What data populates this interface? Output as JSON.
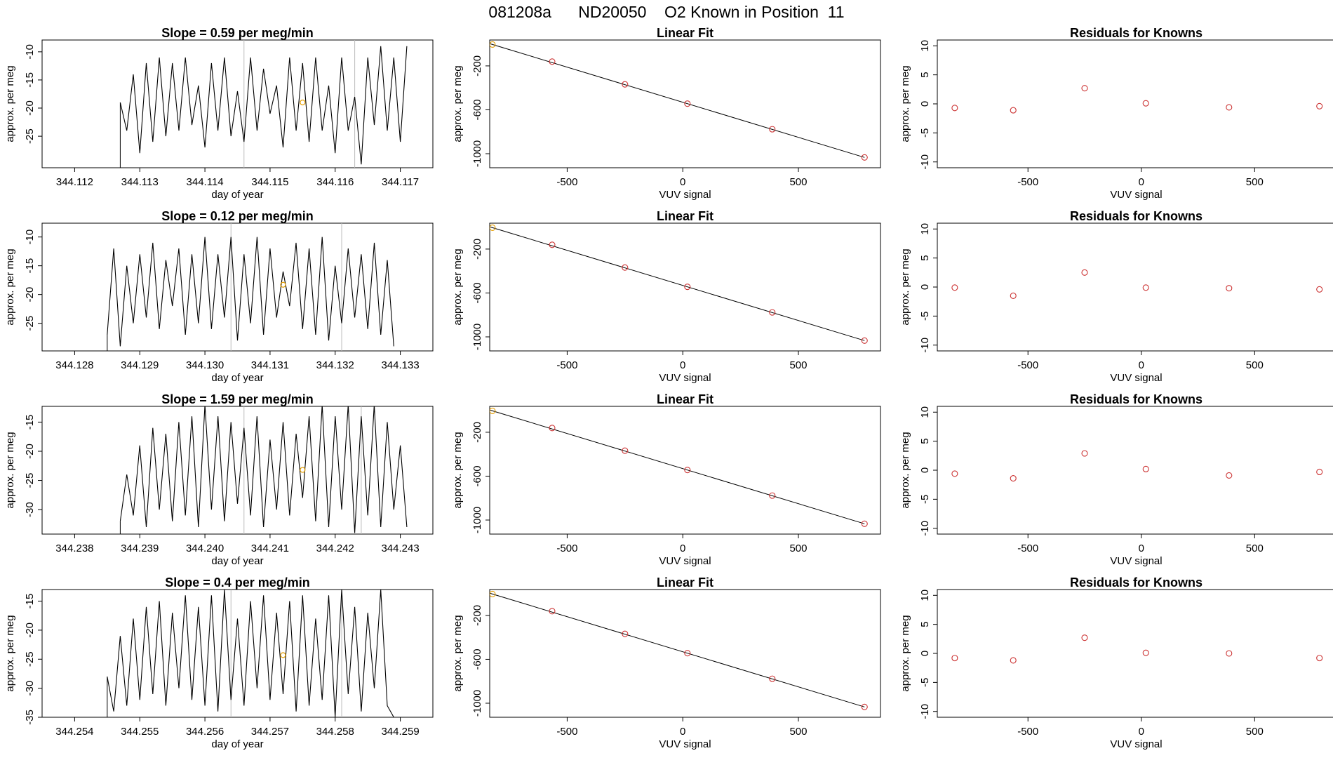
{
  "title": "081208a      ND20050    O2 Known in Position  11",
  "chart_data": [
    {
      "panel": "row1-timeseries",
      "type": "line",
      "title": "Slope =  0.59  per meg/min",
      "xlabel": "day of year",
      "ylabel": "approx. per meg",
      "xlim": [
        344.1115,
        344.1175
      ],
      "ylim": [
        -30.6,
        -7.9
      ],
      "xticks": [
        "344.112",
        "344.113",
        "344.114",
        "344.115",
        "344.116",
        "344.117"
      ],
      "yticks": [
        "-10",
        "-15",
        "-20",
        "-25"
      ],
      "gaps": [
        344.1146,
        344.1163
      ],
      "x": [
        344.1127,
        344.1128,
        344.1129,
        344.113,
        344.1131,
        344.1132,
        344.1133,
        344.1134,
        344.1135,
        344.1136,
        344.1137,
        344.1138,
        344.1139,
        344.114,
        344.1141,
        344.1142,
        344.1143,
        344.1144,
        344.1145,
        344.1146,
        344.1147,
        344.1148,
        344.1149,
        344.115,
        344.1151,
        344.1152,
        344.1153,
        344.1154,
        344.1155,
        344.1156,
        344.1157,
        344.1158,
        344.1159,
        344.116,
        344.1161,
        344.1162,
        344.1163,
        344.1164,
        344.1165,
        344.1166,
        344.1167,
        344.1168,
        344.1169,
        344.117,
        344.1171
      ],
      "y": [
        -19,
        -24,
        -14,
        -28,
        -12,
        -26,
        -11,
        -25,
        -12,
        -24,
        -11,
        -23,
        -16,
        -27,
        -12,
        -24,
        -11,
        -25,
        -17,
        -26,
        -11,
        -24,
        -13,
        -21,
        -16,
        -27,
        -11,
        -24,
        -12,
        -26,
        -11,
        -24,
        -16,
        -28,
        -11,
        -24,
        -18,
        -30,
        -11,
        -23,
        -9,
        -24,
        -11,
        -26,
        -9
      ],
      "highlight": {
        "x": 344.1155,
        "y": -19
      }
    },
    {
      "panel": "row1-linear-fit",
      "type": "scatter",
      "title": "Linear Fit",
      "xlabel": "VUV signal",
      "ylabel": "approx. per meg",
      "xlim": [
        -835,
        855
      ],
      "ylim": [
        -1128,
        36
      ],
      "xticks": [
        "-500",
        "0",
        "500"
      ],
      "yticks": [
        "-200",
        "-600",
        "-1000"
      ],
      "x": [
        -823,
        -565,
        -250,
        20,
        387,
        786
      ],
      "y": [
        -5,
        -161,
        -368,
        -544,
        -777,
        -1034
      ],
      "fit": {
        "from": [
          -823,
          -5
        ],
        "to": [
          786,
          -1034
        ]
      },
      "first_point_color": "#e69f00"
    },
    {
      "panel": "row1-residuals",
      "type": "scatter",
      "title": "Residuals for Knowns",
      "ylabel": "approx. per meg",
      "xlabel": "VUV signal",
      "xlim": [
        -900,
        855
      ],
      "ylim": [
        -11,
        11
      ],
      "xticks": [
        "-500",
        "0",
        "500"
      ],
      "yticks": [
        "10",
        "5",
        "0",
        "-5",
        "-10"
      ],
      "x": [
        -823,
        -565,
        -250,
        20,
        387,
        786
      ],
      "y": [
        -0.7,
        -1.1,
        2.7,
        0.1,
        -0.6,
        -0.4
      ]
    },
    {
      "panel": "row2-timeseries",
      "type": "line",
      "title": "Slope =  0.12  per meg/min",
      "xlabel": "day of year",
      "ylabel": "approx. per meg",
      "xlim": [
        344.1275,
        344.1335
      ],
      "ylim": [
        -29.8,
        -7.6
      ],
      "xticks": [
        "344.128",
        "344.129",
        "344.130",
        "344.131",
        "344.132",
        "344.133"
      ],
      "yticks": [
        "-10",
        "-15",
        "-20",
        "-25"
      ],
      "gaps": [
        344.1304,
        344.1321
      ],
      "x": [
        344.1285,
        344.1286,
        344.1287,
        344.1288,
        344.1289,
        344.129,
        344.1291,
        344.1292,
        344.1293,
        344.1294,
        344.1295,
        344.1296,
        344.1297,
        344.1298,
        344.1299,
        344.13,
        344.1301,
        344.1302,
        344.1303,
        344.1304,
        344.1305,
        344.1306,
        344.1307,
        344.1308,
        344.1309,
        344.131,
        344.1311,
        344.1312,
        344.1313,
        344.1314,
        344.1315,
        344.1316,
        344.1317,
        344.1318,
        344.1319,
        344.132,
        344.1321,
        344.1322,
        344.1323,
        344.1324,
        344.1325,
        344.1326,
        344.1327,
        344.1328,
        344.1329
      ],
      "y": [
        -27,
        -12,
        -29,
        -15,
        -25,
        -13,
        -24,
        -11,
        -26,
        -14,
        -22,
        -12,
        -27,
        -13,
        -25,
        -10,
        -26,
        -13,
        -24,
        -10,
        -28,
        -13,
        -25,
        -10,
        -27,
        -12,
        -24,
        -16,
        -22,
        -11,
        -26,
        -12,
        -27,
        -10,
        -28,
        -15,
        -25,
        -12,
        -24,
        -13,
        -26,
        -11,
        -27,
        -14,
        -29
      ],
      "highlight": {
        "x": 344.1312,
        "y": -18.3
      }
    },
    {
      "panel": "row2-linear-fit",
      "type": "scatter",
      "title": "Linear Fit",
      "xlabel": "VUV signal",
      "ylabel": "approx. per meg",
      "xlim": [
        -835,
        855
      ],
      "ylim": [
        -1128,
        36
      ],
      "xticks": [
        "-500",
        "0",
        "500"
      ],
      "yticks": [
        "-200",
        "-600",
        "-1000"
      ],
      "x": [
        -823,
        -565,
        -250,
        20,
        387,
        786
      ],
      "y": [
        -5,
        -161,
        -368,
        -544,
        -777,
        -1034
      ],
      "fit": {
        "from": [
          -823,
          -5
        ],
        "to": [
          786,
          -1034
        ]
      },
      "first_point_color": "#e69f00"
    },
    {
      "panel": "row2-residuals",
      "type": "scatter",
      "title": "Residuals for Knowns",
      "ylabel": "approx. per meg",
      "xlabel": "VUV signal",
      "xlim": [
        -900,
        855
      ],
      "ylim": [
        -11,
        11
      ],
      "xticks": [
        "-500",
        "0",
        "500"
      ],
      "yticks": [
        "10",
        "5",
        "0",
        "-5",
        "-10"
      ],
      "x": [
        -823,
        -565,
        -250,
        20,
        387,
        786
      ],
      "y": [
        -0.1,
        -1.5,
        2.5,
        -0.1,
        -0.2,
        -0.4
      ]
    },
    {
      "panel": "row3-timeseries",
      "type": "line",
      "title": "Slope =  1.59  per meg/min",
      "xlabel": "day of year",
      "ylabel": "approx. per meg",
      "xlim": [
        344.2375,
        344.2435
      ],
      "ylim": [
        -34.2,
        -12.3
      ],
      "xticks": [
        "344.238",
        "344.239",
        "344.240",
        "344.241",
        "344.242",
        "344.243"
      ],
      "yticks": [
        "-15",
        "-20",
        "-25",
        "-30"
      ],
      "gaps": [
        344.2406,
        344.2424
      ],
      "x": [
        344.2387,
        344.2388,
        344.2389,
        344.239,
        344.2391,
        344.2392,
        344.2393,
        344.2394,
        344.2395,
        344.2396,
        344.2397,
        344.2398,
        344.2399,
        344.24,
        344.2401,
        344.2402,
        344.2403,
        344.2404,
        344.2405,
        344.2406,
        344.2407,
        344.2408,
        344.2409,
        344.241,
        344.2411,
        344.2412,
        344.2413,
        344.2414,
        344.2415,
        344.2416,
        344.2417,
        344.2418,
        344.2419,
        344.242,
        344.2421,
        344.2422,
        344.2423,
        344.2424,
        344.2425,
        344.2426,
        344.2427,
        344.2428,
        344.2429,
        344.243,
        344.2431
      ],
      "y": [
        -32,
        -24,
        -31,
        -19,
        -33,
        -16,
        -30,
        -17,
        -32,
        -15,
        -31,
        -14,
        -33,
        -12,
        -30,
        -14,
        -32,
        -15,
        -29,
        -16,
        -31,
        -14,
        -33,
        -18,
        -30,
        -15,
        -31,
        -17,
        -28,
        -14,
        -32,
        -12,
        -33,
        -14,
        -30,
        -12,
        -34,
        -14,
        -31,
        -12,
        -33,
        -15,
        -30,
        -19,
        -33
      ],
      "highlight": {
        "x": 344.2415,
        "y": -23.2
      }
    },
    {
      "panel": "row3-linear-fit",
      "type": "scatter",
      "title": "Linear Fit",
      "xlabel": "VUV signal",
      "ylabel": "approx. per meg",
      "xlim": [
        -835,
        855
      ],
      "ylim": [
        -1128,
        36
      ],
      "xticks": [
        "-500",
        "0",
        "500"
      ],
      "yticks": [
        "-200",
        "-600",
        "-1000"
      ],
      "x": [
        -823,
        -565,
        -250,
        20,
        387,
        786
      ],
      "y": [
        -5,
        -161,
        -368,
        -544,
        -777,
        -1034
      ],
      "fit": {
        "from": [
          -823,
          -5
        ],
        "to": [
          786,
          -1034
        ]
      },
      "first_point_color": "#e69f00"
    },
    {
      "panel": "row3-residuals",
      "type": "scatter",
      "title": "Residuals for Knowns",
      "ylabel": "approx. per meg",
      "xlabel": "VUV signal",
      "xlim": [
        -900,
        855
      ],
      "ylim": [
        -11,
        11
      ],
      "xticks": [
        "-500",
        "0",
        "500"
      ],
      "yticks": [
        "10",
        "5",
        "0",
        "-5",
        "-10"
      ],
      "x": [
        -823,
        -565,
        -250,
        20,
        387,
        786
      ],
      "y": [
        -0.6,
        -1.4,
        2.9,
        0.2,
        -0.9,
        -0.3
      ]
    },
    {
      "panel": "row4-timeseries",
      "type": "line",
      "title": "Slope =  0.4  per meg/min",
      "xlabel": "day of year",
      "ylabel": "approx. per meg",
      "xlim": [
        344.2535,
        344.2595
      ],
      "ylim": [
        -35,
        -13
      ],
      "xticks": [
        "344.254",
        "344.255",
        "344.256",
        "344.257",
        "344.258",
        "344.259"
      ],
      "yticks": [
        "-15",
        "-20",
        "-25",
        "-30",
        "-35"
      ],
      "gaps": [
        344.2564,
        344.2581
      ],
      "x": [
        344.2545,
        344.2546,
        344.2547,
        344.2548,
        344.2549,
        344.255,
        344.2551,
        344.2552,
        344.2553,
        344.2554,
        344.2555,
        344.2556,
        344.2557,
        344.2558,
        344.2559,
        344.256,
        344.2561,
        344.2562,
        344.2563,
        344.2564,
        344.2565,
        344.2566,
        344.2567,
        344.2568,
        344.2569,
        344.257,
        344.2571,
        344.2572,
        344.2573,
        344.2574,
        344.2575,
        344.2576,
        344.2577,
        344.2578,
        344.2579,
        344.258,
        344.2581,
        344.2582,
        344.2583,
        344.2584,
        344.2585,
        344.2586,
        344.2587,
        344.2588,
        344.2589
      ],
      "y": [
        -28,
        -34,
        -21,
        -33,
        -18,
        -32,
        -16,
        -31,
        -15,
        -33,
        -17,
        -30,
        -14,
        -32,
        -16,
        -33,
        -14,
        -34,
        -13,
        -32,
        -18,
        -33,
        -15,
        -30,
        -14,
        -32,
        -17,
        -31,
        -15,
        -34,
        -14,
        -33,
        -18,
        -32,
        -14,
        -35,
        -13,
        -31,
        -16,
        -34,
        -17,
        -30,
        -13,
        -33,
        -35
      ],
      "highlight": {
        "x": 344.2572,
        "y": -24.3
      }
    },
    {
      "panel": "row4-linear-fit",
      "type": "scatter",
      "title": "Linear Fit",
      "xlabel": "VUV signal",
      "ylabel": "approx. per meg",
      "xlim": [
        -835,
        855
      ],
      "ylim": [
        -1128,
        36
      ],
      "xticks": [
        "-500",
        "0",
        "500"
      ],
      "yticks": [
        "-200",
        "-600",
        "-1000"
      ],
      "x": [
        -823,
        -565,
        -250,
        20,
        387,
        786
      ],
      "y": [
        -5,
        -161,
        -368,
        -544,
        -777,
        -1034
      ],
      "fit": {
        "from": [
          -823,
          -5
        ],
        "to": [
          786,
          -1034
        ]
      },
      "first_point_color": "#e69f00"
    },
    {
      "panel": "row4-residuals",
      "type": "scatter",
      "title": "Residuals for Knowns",
      "ylabel": "approx. per meg",
      "xlabel": "VUV signal",
      "xlim": [
        -900,
        855
      ],
      "ylim": [
        -11,
        11
      ],
      "xticks": [
        "-500",
        "0",
        "500"
      ],
      "yticks": [
        "10",
        "5",
        "0",
        "-5",
        "-10"
      ],
      "x": [
        -823,
        -565,
        -250,
        20,
        387,
        786
      ],
      "y": [
        -0.8,
        -1.2,
        2.7,
        0.1,
        0.0,
        -0.8
      ]
    }
  ]
}
